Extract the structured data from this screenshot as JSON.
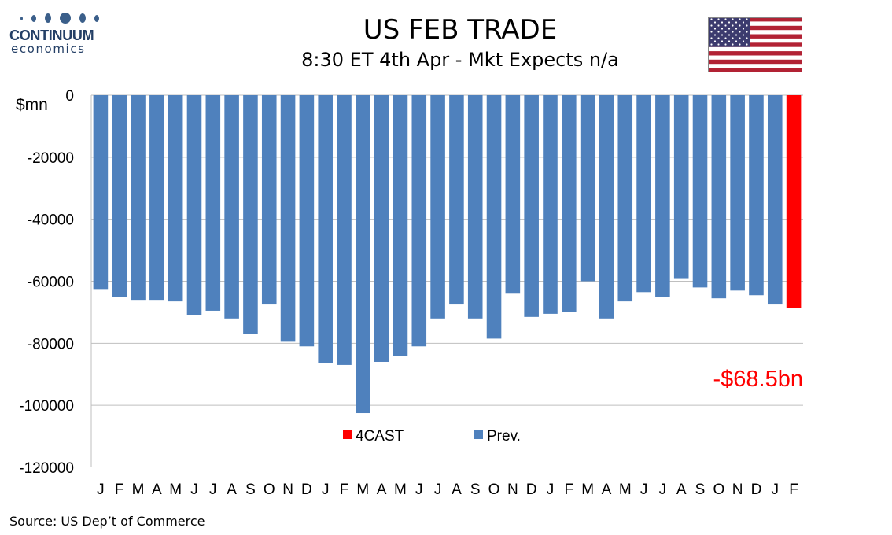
{
  "logo": {
    "name": "CONTINUUM",
    "sub": "economics"
  },
  "title": "US FEB TRADE",
  "subtitle": "8:30 ET 4th Apr - Mkt Expects n/a",
  "source": "Source: US Dep’t of Commerce",
  "annotation": "-$68.5bn",
  "colors": {
    "prev": "#4f81bd",
    "forecast": "#ff0000",
    "annotation": "#ff0000"
  },
  "chart_data": {
    "type": "bar",
    "ylabel": "$mn",
    "ylim": [
      -120000,
      0
    ],
    "yticks": [
      0,
      -20000,
      -40000,
      -60000,
      -80000,
      -100000,
      -120000
    ],
    "grid": true,
    "legend": [
      "4CAST",
      "Prev."
    ],
    "categories": [
      "J",
      "F",
      "M",
      "A",
      "M",
      "J",
      "J",
      "A",
      "S",
      "O",
      "N",
      "D",
      "J",
      "F",
      "M",
      "A",
      "M",
      "J",
      "J",
      "A",
      "S",
      "O",
      "N",
      "D",
      "J",
      "F",
      "M",
      "A",
      "M",
      "J",
      "J",
      "A",
      "S",
      "O",
      "N",
      "D",
      "J",
      "F"
    ],
    "series": [
      {
        "name": "Prev.",
        "values": [
          -62500,
          -65000,
          -66000,
          -66000,
          -66500,
          -71000,
          -69500,
          -72000,
          -77000,
          -67500,
          -79500,
          -81000,
          -86500,
          -87000,
          -102500,
          -86000,
          -84000,
          -81000,
          -72000,
          -67500,
          -72000,
          -78500,
          -64000,
          -71500,
          -70500,
          -70000,
          -60000,
          -72000,
          -66500,
          -63500,
          -65000,
          -59000,
          -62000,
          -65500,
          -63000,
          -64500,
          -67500,
          null
        ]
      },
      {
        "name": "4CAST",
        "values": [
          null,
          null,
          null,
          null,
          null,
          null,
          null,
          null,
          null,
          null,
          null,
          null,
          null,
          null,
          null,
          null,
          null,
          null,
          null,
          null,
          null,
          null,
          null,
          null,
          null,
          null,
          null,
          null,
          null,
          null,
          null,
          null,
          null,
          null,
          null,
          null,
          null,
          -68500
        ]
      }
    ]
  }
}
